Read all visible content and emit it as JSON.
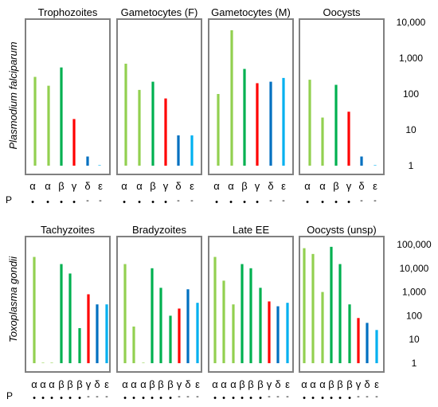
{
  "colors": {
    "light_green": "#92d050",
    "green": "#00b050",
    "red": "#ff0000",
    "blue": "#0070c0",
    "light_blue": "#00b0f0",
    "panel_border": "#808080"
  },
  "chart_data": [
    {
      "type": "bar",
      "ylabel": "Plasmodium falciparum",
      "yscale": "log",
      "ylim": [
        1,
        10000
      ],
      "yticks": [
        "1",
        "10",
        "100",
        "1,000",
        "10,000"
      ],
      "categories": [
        "α",
        "α",
        "β",
        "γ",
        "δ",
        "ε"
      ],
      "phosphorylation_label": "P",
      "phosphorylation": [
        "•",
        "•",
        "•",
        "•",
        "-",
        "-"
      ],
      "bar_colors": [
        "light_green",
        "light_green",
        "green",
        "red",
        "blue",
        "light_blue"
      ],
      "panels": [
        {
          "title": "Trophozoites",
          "values": [
            300,
            170,
            550,
            20,
            1.8,
            1
          ]
        },
        {
          "title": "Gametocytes (F)",
          "values": [
            700,
            130,
            220,
            75,
            7,
            7
          ]
        },
        {
          "title": "Gametocytes (M)",
          "values": [
            100,
            6000,
            500,
            200,
            220,
            280
          ]
        },
        {
          "title": "Oocysts",
          "values": [
            250,
            22,
            180,
            32,
            1.8,
            1
          ]
        }
      ]
    },
    {
      "type": "bar",
      "ylabel": "Toxoplasma gondii",
      "yscale": "log",
      "ylim": [
        1,
        100000
      ],
      "yticks": [
        "1",
        "10",
        "100",
        "1,000",
        "10,000",
        "100,000"
      ],
      "categories": [
        "α",
        "α",
        "α",
        "β",
        "β",
        "β",
        "γ",
        "δ",
        "ε"
      ],
      "phosphorylation_label": "P",
      "phosphorylation": [
        "•",
        "•",
        "•",
        "•",
        "•",
        "•",
        "-",
        "-",
        "-"
      ],
      "bar_colors": [
        "light_green",
        "light_green",
        "light_green",
        "green",
        "green",
        "green",
        "red",
        "blue",
        "light_blue"
      ],
      "panels": [
        {
          "title": "Tachyzoites",
          "values": [
            30000,
            1,
            1,
            15000,
            6000,
            30,
            800,
            300,
            300
          ]
        },
        {
          "title": "Bradyzoites",
          "values": [
            15000,
            35,
            1,
            10000,
            1500,
            100,
            200,
            1300,
            350
          ]
        },
        {
          "title": "Late EE",
          "values": [
            30000,
            3000,
            300,
            15000,
            10000,
            1500,
            400,
            250,
            350
          ]
        },
        {
          "title": "Oocysts (unsp)",
          "values": [
            70000,
            40000,
            1000,
            80000,
            15000,
            300,
            80,
            50,
            25
          ]
        }
      ]
    }
  ]
}
